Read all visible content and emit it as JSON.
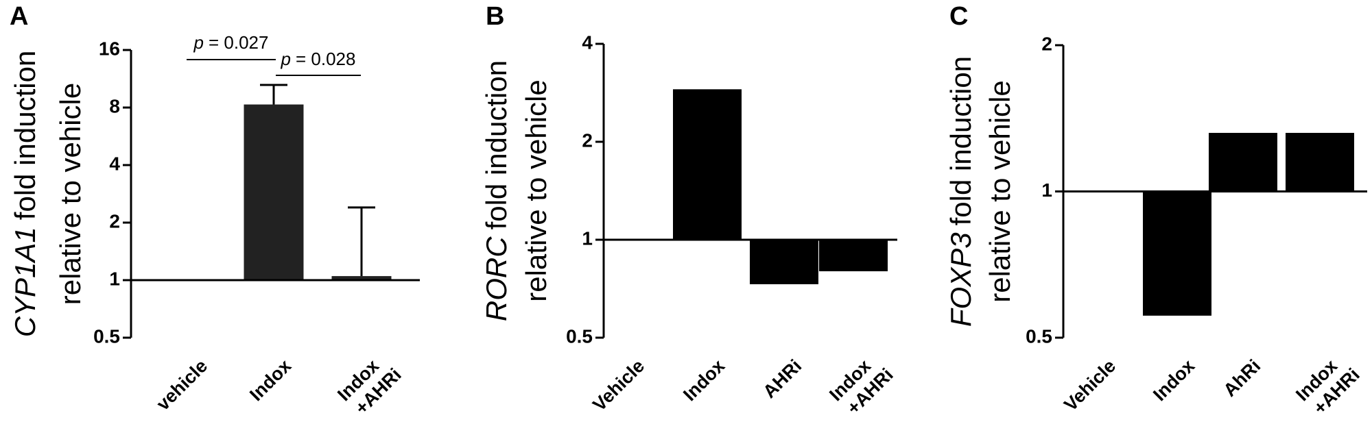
{
  "chart_data": [
    {
      "type": "bar",
      "panel": "A",
      "ylabel_gene": "CYP1A1",
      "ylabel": "fold induction",
      "ylabel2": "relative to vehicle",
      "categories": [
        [
          "vehicle"
        ],
        [
          "Indox"
        ],
        [
          "Indox",
          "+AHRi"
        ]
      ],
      "values": [
        1,
        8.3,
        1.05
      ],
      "errors": [
        null,
        2.2,
        1.35
      ],
      "color": "#222222",
      "ylim": [
        0.5,
        16
      ],
      "yticks": [
        0.5,
        1,
        2,
        4,
        8,
        16
      ],
      "log_base": 2,
      "baseline": 1,
      "annotations": [
        {
          "italic": "p",
          "text": "= 0.027"
        },
        {
          "italic": "p",
          "text": "= 0.028"
        }
      ]
    },
    {
      "type": "bar",
      "panel": "B",
      "ylabel_gene": "RORC",
      "ylabel": "fold induction",
      "ylabel2": "relative to vehicle",
      "categories": [
        [
          "Vehicle"
        ],
        [
          "Indox"
        ],
        [
          "AHRi"
        ],
        [
          "Indox",
          "+AHRi"
        ]
      ],
      "values": [
        1,
        2.9,
        0.73,
        0.8
      ],
      "color": "#000000",
      "ylim": [
        0.5,
        4
      ],
      "yticks": [
        0.5,
        1,
        2,
        4
      ],
      "log_base": 2,
      "baseline": 1
    },
    {
      "type": "bar",
      "panel": "C",
      "ylabel_gene": "FOXP3",
      "ylabel": "fold induction",
      "ylabel2": "relative to vehicle",
      "categories": [
        [
          "Vehicle"
        ],
        [
          "Indox"
        ],
        [
          "AhRi"
        ],
        [
          "Indox",
          "+AHRi"
        ]
      ],
      "values": [
        1,
        0.555,
        1.32,
        1.32
      ],
      "color": "#000000",
      "ylim": [
        0.5,
        2
      ],
      "yticks": [
        0.5,
        1,
        2
      ],
      "log_base": 2,
      "baseline": 1
    }
  ]
}
